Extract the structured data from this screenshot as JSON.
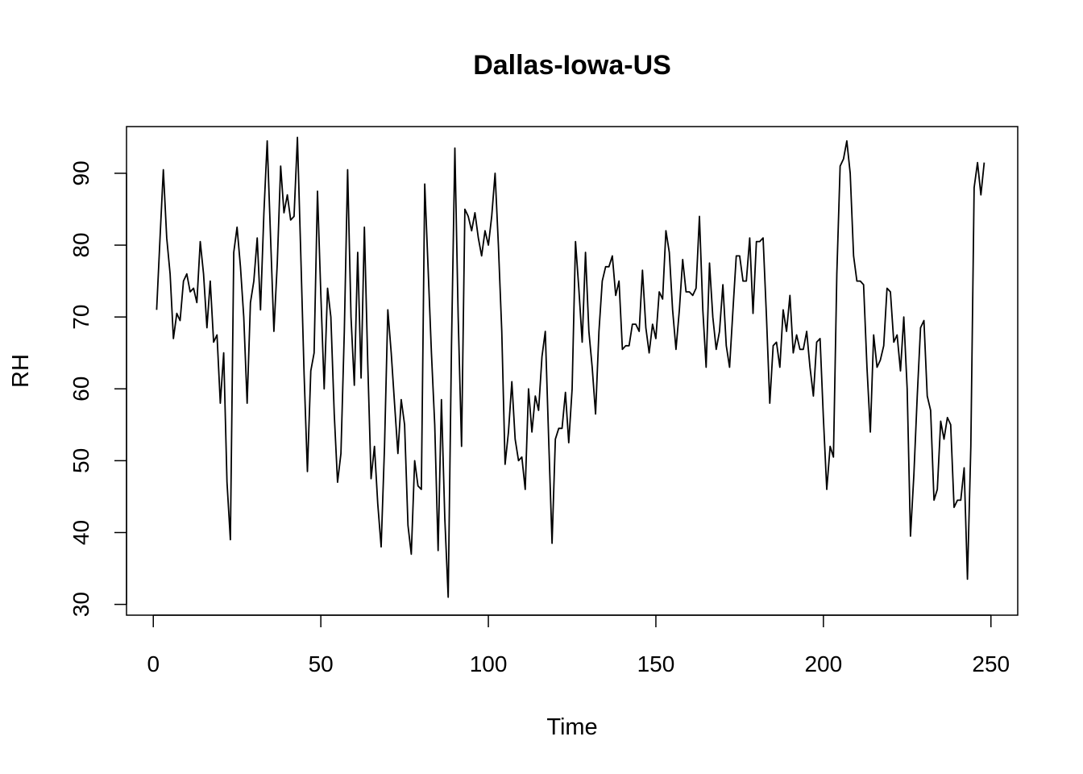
{
  "chart_data": {
    "type": "line",
    "title": "Dallas-Iowa-US",
    "xlabel": "Time",
    "ylabel": "RH",
    "xlim": [
      -8,
      258
    ],
    "ylim": [
      28.5,
      96.5
    ],
    "x_ticks": [
      0,
      50,
      100,
      150,
      200,
      250
    ],
    "y_ticks": [
      30,
      40,
      50,
      60,
      70,
      80,
      90
    ],
    "grid": false,
    "legend": "none",
    "series": [
      {
        "color": "#000000",
        "points": [
          [
            1,
            71
          ],
          [
            2,
            81
          ],
          [
            3,
            90.5
          ],
          [
            4,
            81
          ],
          [
            5,
            76
          ],
          [
            6,
            67
          ],
          [
            7,
            70.5
          ],
          [
            8,
            69.5
          ],
          [
            9,
            75
          ],
          [
            10,
            76
          ],
          [
            11,
            73.5
          ],
          [
            12,
            74
          ],
          [
            13,
            72
          ],
          [
            14,
            80.5
          ],
          [
            15,
            76
          ],
          [
            16,
            68.5
          ],
          [
            17,
            75
          ],
          [
            18,
            66.5
          ],
          [
            19,
            67.5
          ],
          [
            20,
            58
          ],
          [
            21,
            65
          ],
          [
            22,
            47
          ],
          [
            23,
            39
          ],
          [
            24,
            79
          ],
          [
            25,
            82.5
          ],
          [
            26,
            77
          ],
          [
            27,
            70
          ],
          [
            28,
            58
          ],
          [
            29,
            72
          ],
          [
            30,
            75
          ],
          [
            31,
            81
          ],
          [
            32,
            71
          ],
          [
            33,
            84.5
          ],
          [
            34,
            94.5
          ],
          [
            35,
            81
          ],
          [
            36,
            68
          ],
          [
            37,
            77.5
          ],
          [
            38,
            91
          ],
          [
            39,
            84.5
          ],
          [
            40,
            87
          ],
          [
            41,
            83.5
          ],
          [
            42,
            84
          ],
          [
            43,
            95
          ],
          [
            44,
            79
          ],
          [
            45,
            62
          ],
          [
            46,
            48.5
          ],
          [
            47,
            62.5
          ],
          [
            48,
            65
          ],
          [
            49,
            87.5
          ],
          [
            50,
            73
          ],
          [
            51,
            60
          ],
          [
            52,
            74
          ],
          [
            53,
            70
          ],
          [
            54,
            56.5
          ],
          [
            55,
            47
          ],
          [
            56,
            51
          ],
          [
            57,
            68
          ],
          [
            58,
            90.5
          ],
          [
            59,
            70
          ],
          [
            60,
            60.5
          ],
          [
            61,
            79
          ],
          [
            62,
            61.5
          ],
          [
            63,
            82.5
          ],
          [
            64,
            63.5
          ],
          [
            65,
            47.5
          ],
          [
            66,
            52
          ],
          [
            67,
            44
          ],
          [
            68,
            38
          ],
          [
            69,
            52
          ],
          [
            70,
            71
          ],
          [
            71,
            65
          ],
          [
            72,
            58
          ],
          [
            73,
            51
          ],
          [
            74,
            58.5
          ],
          [
            75,
            55
          ],
          [
            76,
            41
          ],
          [
            77,
            37
          ],
          [
            78,
            50
          ],
          [
            79,
            46.5
          ],
          [
            80,
            46
          ],
          [
            81,
            88.5
          ],
          [
            82,
            77
          ],
          [
            83,
            65
          ],
          [
            84,
            55
          ],
          [
            85,
            37.5
          ],
          [
            86,
            58.5
          ],
          [
            87,
            42
          ],
          [
            88,
            31
          ],
          [
            89,
            66
          ],
          [
            90,
            93.5
          ],
          [
            91,
            70
          ],
          [
            92,
            52
          ],
          [
            93,
            85
          ],
          [
            94,
            84
          ],
          [
            95,
            82
          ],
          [
            96,
            84.5
          ],
          [
            97,
            81
          ],
          [
            98,
            78.5
          ],
          [
            99,
            82
          ],
          [
            100,
            80
          ],
          [
            101,
            84
          ],
          [
            102,
            90
          ],
          [
            103,
            80
          ],
          [
            104,
            68
          ],
          [
            105,
            49.5
          ],
          [
            106,
            54
          ],
          [
            107,
            61
          ],
          [
            108,
            53
          ],
          [
            109,
            50
          ],
          [
            110,
            50.5
          ],
          [
            111,
            46
          ],
          [
            112,
            60
          ],
          [
            113,
            54
          ],
          [
            114,
            59
          ],
          [
            115,
            57
          ],
          [
            116,
            64.5
          ],
          [
            117,
            68
          ],
          [
            118,
            53
          ],
          [
            119,
            38.5
          ],
          [
            120,
            53
          ],
          [
            121,
            54.5
          ],
          [
            122,
            54.5
          ],
          [
            123,
            59.5
          ],
          [
            124,
            52.5
          ],
          [
            125,
            60
          ],
          [
            126,
            80.5
          ],
          [
            127,
            74
          ],
          [
            128,
            66.5
          ],
          [
            129,
            79
          ],
          [
            130,
            68
          ],
          [
            131,
            63
          ],
          [
            132,
            56.5
          ],
          [
            133,
            68
          ],
          [
            134,
            75
          ],
          [
            135,
            77
          ],
          [
            136,
            77
          ],
          [
            137,
            78.5
          ],
          [
            138,
            73
          ],
          [
            139,
            75
          ],
          [
            140,
            65.5
          ],
          [
            141,
            66
          ],
          [
            142,
            66
          ],
          [
            143,
            69
          ],
          [
            144,
            69
          ],
          [
            145,
            68
          ],
          [
            146,
            76.5
          ],
          [
            147,
            68.5
          ],
          [
            148,
            65
          ],
          [
            149,
            69
          ],
          [
            150,
            67
          ],
          [
            151,
            73.5
          ],
          [
            152,
            72.5
          ],
          [
            153,
            82
          ],
          [
            154,
            79
          ],
          [
            155,
            71
          ],
          [
            156,
            65.5
          ],
          [
            157,
            71
          ],
          [
            158,
            78
          ],
          [
            159,
            73.5
          ],
          [
            160,
            73.5
          ],
          [
            161,
            73
          ],
          [
            162,
            74
          ],
          [
            163,
            84
          ],
          [
            164,
            71
          ],
          [
            165,
            63
          ],
          [
            166,
            77.5
          ],
          [
            167,
            70
          ],
          [
            168,
            65.5
          ],
          [
            169,
            68
          ],
          [
            170,
            74.5
          ],
          [
            171,
            66
          ],
          [
            172,
            63
          ],
          [
            173,
            71
          ],
          [
            174,
            78.5
          ],
          [
            175,
            78.5
          ],
          [
            176,
            75
          ],
          [
            177,
            75
          ],
          [
            178,
            81
          ],
          [
            179,
            70.5
          ],
          [
            180,
            80.5
          ],
          [
            181,
            80.5
          ],
          [
            182,
            81
          ],
          [
            183,
            70
          ],
          [
            184,
            58
          ],
          [
            185,
            66
          ],
          [
            186,
            66.5
          ],
          [
            187,
            63
          ],
          [
            188,
            71
          ],
          [
            189,
            68
          ],
          [
            190,
            73
          ],
          [
            191,
            65
          ],
          [
            192,
            67.5
          ],
          [
            193,
            65.5
          ],
          [
            194,
            65.5
          ],
          [
            195,
            68
          ],
          [
            196,
            63
          ],
          [
            197,
            59
          ],
          [
            198,
            66.5
          ],
          [
            199,
            67
          ],
          [
            200,
            56
          ],
          [
            201,
            46
          ],
          [
            202,
            52
          ],
          [
            203,
            50.5
          ],
          [
            204,
            76
          ],
          [
            205,
            91
          ],
          [
            206,
            92
          ],
          [
            207,
            94.5
          ],
          [
            208,
            90
          ],
          [
            209,
            78.5
          ],
          [
            210,
            75
          ],
          [
            211,
            75
          ],
          [
            212,
            74.5
          ],
          [
            213,
            63
          ],
          [
            214,
            54
          ],
          [
            215,
            67.5
          ],
          [
            216,
            63
          ],
          [
            217,
            64
          ],
          [
            218,
            66
          ],
          [
            219,
            74
          ],
          [
            220,
            73.5
          ],
          [
            221,
            66.5
          ],
          [
            222,
            67.5
          ],
          [
            223,
            62.5
          ],
          [
            224,
            70
          ],
          [
            225,
            60
          ],
          [
            226,
            39.5
          ],
          [
            227,
            48
          ],
          [
            228,
            59
          ],
          [
            229,
            68.5
          ],
          [
            230,
            69.5
          ],
          [
            231,
            59
          ],
          [
            232,
            57
          ],
          [
            233,
            44.5
          ],
          [
            234,
            46
          ],
          [
            235,
            55.5
          ],
          [
            236,
            53
          ],
          [
            237,
            56
          ],
          [
            238,
            55
          ],
          [
            239,
            43.5
          ],
          [
            240,
            44.5
          ],
          [
            241,
            44.5
          ],
          [
            242,
            49
          ],
          [
            243,
            33.5
          ],
          [
            244,
            52
          ],
          [
            245,
            88
          ],
          [
            246,
            91.5
          ],
          [
            247,
            87
          ],
          [
            248,
            91.5
          ]
        ]
      }
    ]
  }
}
